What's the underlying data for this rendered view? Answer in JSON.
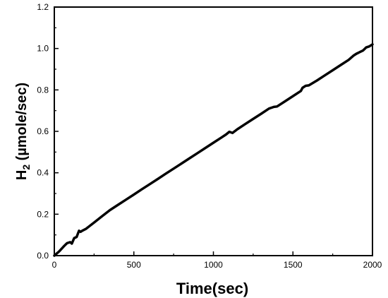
{
  "chart_data": {
    "type": "line",
    "xlabel": "Time(sec)",
    "ylabel_main": "H",
    "ylabel_sub": "2",
    "ylabel_rest": " (µmole/sec)",
    "xlim": [
      0,
      2000
    ],
    "ylim": [
      0,
      1.2
    ],
    "xticks": [
      0,
      500,
      1000,
      1500,
      2000
    ],
    "yticks": [
      0.0,
      0.2,
      0.4,
      0.6,
      0.8,
      1.0,
      1.2
    ],
    "xtick_labels": [
      "0",
      "500",
      "1000",
      "1500",
      "2000"
    ],
    "ytick_labels": [
      "0.0",
      "0.2",
      "0.4",
      "0.6",
      "0.8",
      "1.0",
      "1.2"
    ],
    "grid": false,
    "legend": false,
    "line_color": "#000000",
    "series": [
      {
        "x": [
          0,
          30,
          60,
          80,
          100,
          110,
          125,
          140,
          155,
          165,
          175,
          200,
          250,
          300,
          350,
          400,
          450,
          500,
          550,
          600,
          650,
          700,
          750,
          800,
          850,
          900,
          950,
          1000,
          1050,
          1080,
          1100,
          1120,
          1150,
          1200,
          1250,
          1300,
          1350,
          1380,
          1400,
          1450,
          1500,
          1550,
          1560,
          1580,
          1600,
          1650,
          1700,
          1750,
          1800,
          1850,
          1880,
          1900,
          1940,
          1960,
          1980,
          2000
        ],
        "y": [
          0.0,
          0.02,
          0.045,
          0.06,
          0.065,
          0.058,
          0.085,
          0.09,
          0.12,
          0.115,
          0.12,
          0.13,
          0.16,
          0.19,
          0.22,
          0.245,
          0.27,
          0.295,
          0.32,
          0.345,
          0.37,
          0.395,
          0.42,
          0.445,
          0.47,
          0.495,
          0.52,
          0.545,
          0.57,
          0.585,
          0.598,
          0.592,
          0.61,
          0.635,
          0.66,
          0.685,
          0.71,
          0.718,
          0.72,
          0.745,
          0.77,
          0.795,
          0.81,
          0.82,
          0.822,
          0.845,
          0.87,
          0.895,
          0.92,
          0.945,
          0.965,
          0.975,
          0.99,
          1.005,
          1.01,
          1.02
        ]
      }
    ]
  }
}
